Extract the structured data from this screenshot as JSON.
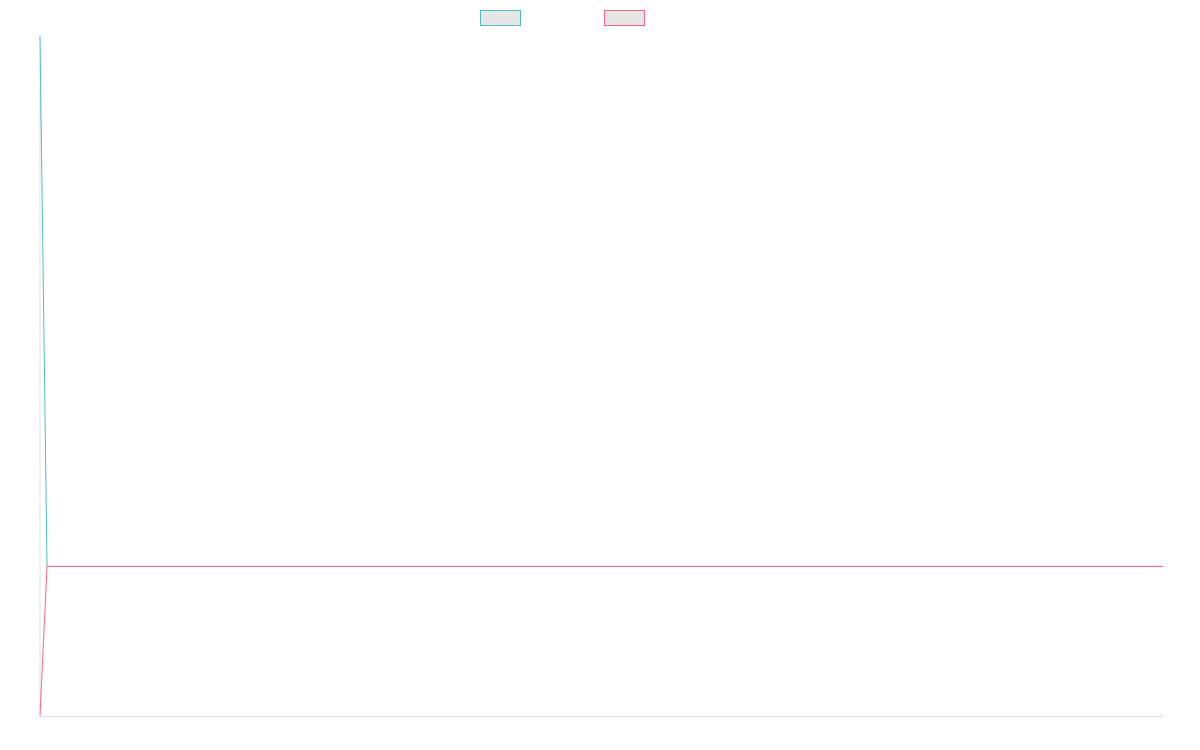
{
  "chart_data": {
    "type": "line",
    "title": "",
    "xlabel": "",
    "ylabel": "",
    "legend_position": "top",
    "grid": false,
    "x": [
      0,
      1,
      160
    ],
    "ylim": [
      0,
      1
    ],
    "xlim": [
      0,
      160
    ],
    "series": [
      {
        "color": "#4bc0c0",
        "values": [
          1.0,
          0.22,
          0.22
        ]
      },
      {
        "color": "#ff6384",
        "values": [
          0.0,
          0.22,
          0.22
        ]
      }
    ],
    "legend_swatch_fill": "#e6e6e6",
    "axis_color": "#e0e0e0"
  }
}
